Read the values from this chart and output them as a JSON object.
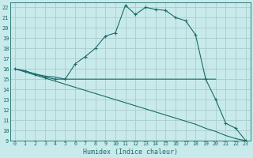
{
  "xlabel": "Humidex (Indice chaleur)",
  "xlim": [
    -0.5,
    23.5
  ],
  "ylim": [
    9,
    22.5
  ],
  "yticks": [
    9,
    10,
    11,
    12,
    13,
    14,
    15,
    16,
    17,
    18,
    19,
    20,
    21,
    22
  ],
  "xticks": [
    0,
    1,
    2,
    3,
    4,
    5,
    6,
    7,
    8,
    9,
    10,
    11,
    12,
    13,
    14,
    15,
    16,
    17,
    18,
    19,
    20,
    21,
    22,
    23
  ],
  "bg_color": "#c8eaea",
  "grid_color": "#aacccc",
  "line_color": "#1a6b6b",
  "curve1_x": [
    0,
    1,
    2,
    3,
    4,
    5,
    6,
    7,
    8,
    9,
    10,
    11,
    12,
    13,
    14,
    15,
    16,
    17,
    18,
    19,
    20,
    21,
    22,
    23
  ],
  "curve1_y": [
    16.0,
    15.8,
    15.5,
    15.2,
    15.0,
    15.0,
    16.5,
    17.2,
    18.0,
    19.2,
    19.5,
    22.2,
    21.3,
    22.0,
    21.8,
    21.7,
    21.0,
    20.7,
    19.3,
    15.0,
    13.0,
    10.7,
    10.2,
    9.0
  ],
  "curve2_x": [
    0,
    1,
    2,
    3,
    4,
    5,
    6,
    7,
    8,
    9,
    10,
    11,
    12,
    13,
    14,
    15,
    16,
    17,
    18,
    19,
    20
  ],
  "curve2_y": [
    16.0,
    15.8,
    15.5,
    15.3,
    15.2,
    15.0,
    15.0,
    15.0,
    15.0,
    15.0,
    15.0,
    15.0,
    15.0,
    15.0,
    15.0,
    15.0,
    15.0,
    15.0,
    15.0,
    15.0,
    15.0
  ],
  "curve3_x": [
    0,
    1,
    2,
    3,
    4,
    5,
    6,
    7,
    8,
    9,
    10,
    11,
    12,
    13,
    14,
    15,
    16,
    17,
    18,
    19,
    20,
    21,
    22,
    23
  ],
  "curve3_y": [
    16.0,
    15.7,
    15.4,
    15.1,
    14.8,
    14.5,
    14.2,
    13.9,
    13.6,
    13.3,
    13.0,
    12.7,
    12.4,
    12.1,
    11.8,
    11.5,
    11.2,
    10.9,
    10.6,
    10.2,
    9.9,
    9.5,
    9.2,
    9.0
  ]
}
